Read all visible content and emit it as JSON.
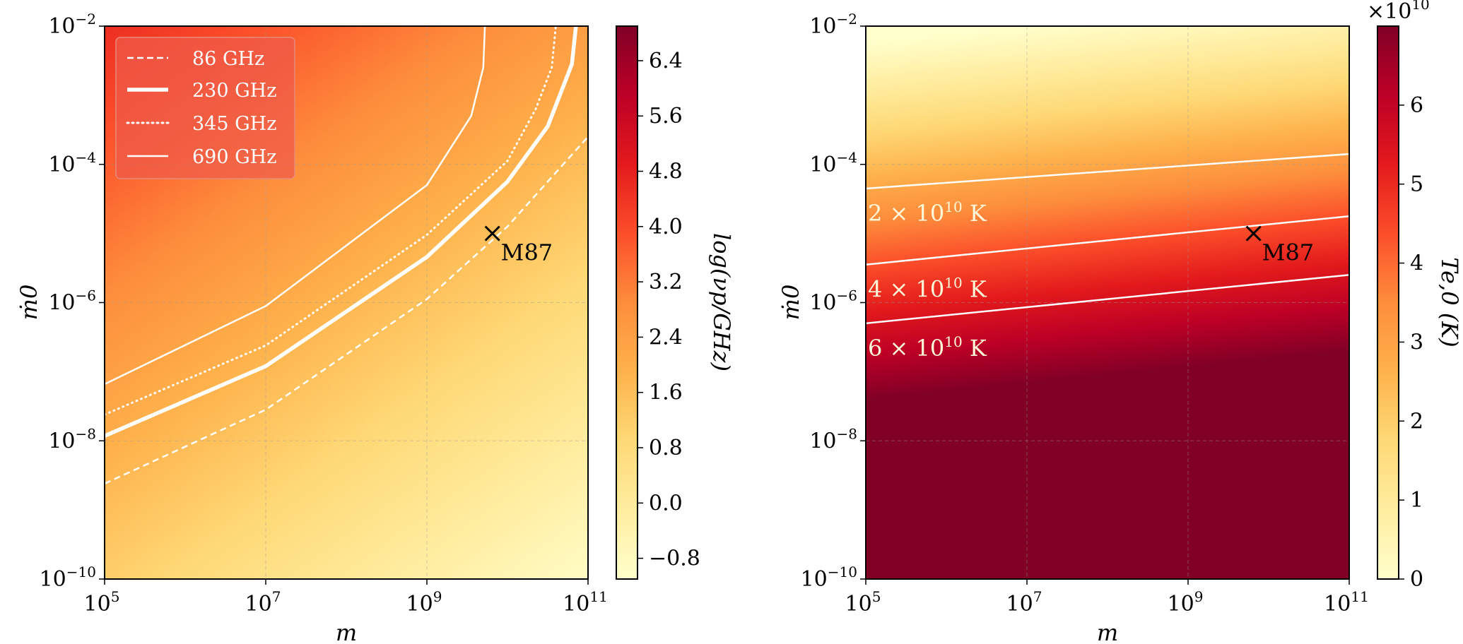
{
  "chart_data": [
    {
      "type": "heatmap",
      "title": "",
      "xlabel": "m",
      "ylabel": "ṁ0",
      "x_scale": "log",
      "y_scale": "log",
      "xlim": [
        100000.0,
        100000000000.0
      ],
      "ylim": [
        1e-10,
        0.01
      ],
      "x_ticks": [
        {
          "base": "10",
          "exp": "5"
        },
        {
          "base": "10",
          "exp": "7"
        },
        {
          "base": "10",
          "exp": "9"
        },
        {
          "base": "10",
          "exp": "11"
        }
      ],
      "y_ticks": [
        {
          "base": "10",
          "exp": "−10"
        },
        {
          "base": "10",
          "exp": "−8"
        },
        {
          "base": "10",
          "exp": "−6"
        },
        {
          "base": "10",
          "exp": "−4"
        },
        {
          "base": "10",
          "exp": "−2"
        }
      ],
      "colorbar": {
        "label": "log(νp/GHz)",
        "range": [
          -1.1,
          6.9
        ],
        "ticks": [
          "−0.8",
          "0.0",
          "0.8",
          "1.6",
          "2.4",
          "3.2",
          "4.0",
          "4.8",
          "5.6",
          "6.4"
        ],
        "colormap": "YlOrRd"
      },
      "legend": {
        "placement": "top-left",
        "entries": [
          {
            "label": "86 GHz",
            "style": "dashed"
          },
          {
            "label": "230 GHz",
            "style": "thick-solid"
          },
          {
            "label": "345 GHz",
            "style": "dotted"
          },
          {
            "label": "690 GHz",
            "style": "solid"
          }
        ]
      },
      "contours": [
        {
          "label": "86 GHz",
          "log_nu": 1.934,
          "points": [
            [
              5.0,
              -8.62
            ],
            [
              7.0,
              -7.55
            ],
            [
              9.0,
              -5.95
            ],
            [
              10.0,
              -4.9
            ],
            [
              11.0,
              -3.6
            ]
          ]
        },
        {
          "label": "230 GHz",
          "log_nu": 2.362,
          "points": [
            [
              5.0,
              -7.93
            ],
            [
              7.0,
              -6.92
            ],
            [
              9.0,
              -5.34
            ],
            [
              10.0,
              -4.25
            ],
            [
              10.5,
              -3.45
            ],
            [
              10.8,
              -2.55
            ],
            [
              10.85,
              -2.0
            ]
          ]
        },
        {
          "label": "345 GHz",
          "log_nu": 2.538,
          "points": [
            [
              5.0,
              -7.62
            ],
            [
              7.0,
              -6.62
            ],
            [
              9.0,
              -5.02
            ],
            [
              10.0,
              -3.95
            ],
            [
              10.35,
              -3.2
            ],
            [
              10.55,
              -2.6
            ],
            [
              10.6,
              -2.0
            ]
          ]
        },
        {
          "label": "690 GHz",
          "log_nu": 2.839,
          "points": [
            [
              5.0,
              -7.18
            ],
            [
              7.0,
              -6.05
            ],
            [
              9.0,
              -4.3
            ],
            [
              9.55,
              -3.3
            ],
            [
              9.7,
              -2.6
            ],
            [
              9.72,
              -2.0
            ]
          ]
        }
      ],
      "annotation": {
        "label": "M87",
        "m": 6500000000.0,
        "mdot0": 1e-05
      }
    },
    {
      "type": "heatmap",
      "title": "",
      "xlabel": "m",
      "ylabel": "ṁ0",
      "x_scale": "log",
      "y_scale": "log",
      "xlim": [
        100000.0,
        100000000000.0
      ],
      "ylim": [
        1e-10,
        0.01
      ],
      "x_ticks": [
        {
          "base": "10",
          "exp": "5"
        },
        {
          "base": "10",
          "exp": "7"
        },
        {
          "base": "10",
          "exp": "9"
        },
        {
          "base": "10",
          "exp": "11"
        }
      ],
      "y_ticks": [
        {
          "base": "10",
          "exp": "−10"
        },
        {
          "base": "10",
          "exp": "−8"
        },
        {
          "base": "10",
          "exp": "−6"
        },
        {
          "base": "10",
          "exp": "−4"
        },
        {
          "base": "10",
          "exp": "−2"
        }
      ],
      "colorbar": {
        "label": "Te,0 (K)",
        "range": [
          0,
          7.0
        ],
        "multiplier": "×10",
        "multiplier_exp": "10",
        "ticks": [
          "0",
          "1",
          "2",
          "3",
          "4",
          "5",
          "6"
        ],
        "colormap": "YlOrRd"
      },
      "contours": [
        {
          "label": "2 × 10",
          "label_exp": "10",
          "label_unit": "K",
          "value": 2,
          "points": [
            [
              5.0,
              -4.35
            ],
            [
              11.0,
              -3.85
            ]
          ]
        },
        {
          "label": "4 × 10",
          "label_exp": "10",
          "label_unit": "K",
          "value": 4,
          "points": [
            [
              5.0,
              -5.45
            ],
            [
              11.0,
              -4.75
            ]
          ]
        },
        {
          "label": "6 × 10",
          "label_exp": "10",
          "label_unit": "K",
          "value": 6,
          "points": [
            [
              5.0,
              -6.3
            ],
            [
              11.0,
              -5.6
            ]
          ]
        }
      ],
      "annotation": {
        "label": "M87",
        "m": 6500000000.0,
        "mdot0": 1e-05
      }
    }
  ]
}
